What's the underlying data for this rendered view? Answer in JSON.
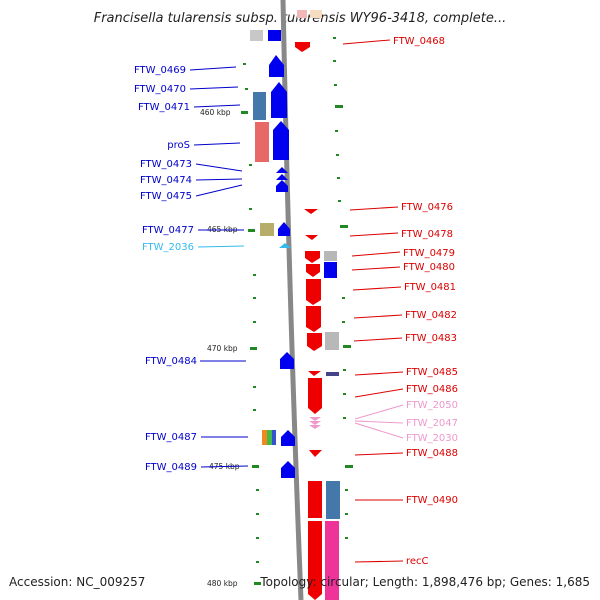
{
  "title": "Francisella tularensis subsp. tularensis WY96-3418, complete...",
  "footer": {
    "accession": "Accession: NC_009257",
    "topology": "Topology: circular; Length: 1,898,476 bp; Genes: 1,685"
  },
  "ticks": {
    "t460": "460 kbp",
    "t465": "465 kbp",
    "t470": "470 kbp",
    "t475": "475 kbp",
    "t480": "480 kbp"
  },
  "colors": {
    "forward_strand": "#0000ee",
    "reverse_strand": "#ee0000",
    "highlight_cyan": "#33bbee",
    "highlight_pink": "#ee99cc",
    "backbone": "#888888",
    "ruler_dots": "#228822"
  },
  "left_genes": {
    "g0469": "FTW_0469",
    "g0470": "FTW_0470",
    "g0471": "FTW_0471",
    "pros": "proS",
    "g0473": "FTW_0473",
    "g0474": "FTW_0474",
    "g0475": "FTW_0475",
    "g0477": "FTW_0477",
    "g2036": "FTW_2036",
    "g0484": "FTW_0484",
    "g0487": "FTW_0487",
    "g0489": "FTW_0489"
  },
  "right_genes": {
    "g0468": "FTW_0468",
    "g0476": "FTW_0476",
    "g0478": "FTW_0478",
    "g0479": "FTW_0479",
    "g0480": "FTW_0480",
    "g0481": "FTW_0481",
    "g0482": "FTW_0482",
    "g0483": "FTW_0483",
    "g0485": "FTW_0485",
    "g0486": "FTW_0486",
    "g2050": "FTW_2050",
    "g2047": "FTW_2047",
    "g2030": "FTW_2030",
    "g0488": "FTW_0488",
    "g0490": "FTW_0490",
    "recc": "recC"
  }
}
